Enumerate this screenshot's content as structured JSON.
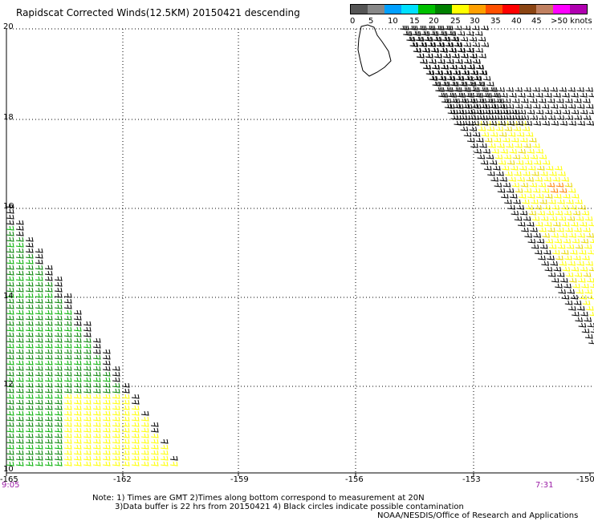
{
  "title": "Rapidscat Corrected Winds(12.5KM) 20150421 descending",
  "legend": {
    "colors": [
      "#555555",
      "#888888",
      "#00a0ff",
      "#00e0ff",
      "#00c000",
      "#008000",
      "#ffff00",
      "#ffa000",
      "#ff5000",
      "#ff0000",
      "#8b4513",
      "#c08060",
      "#ff00ff",
      "#b000b0"
    ],
    "labels": [
      "0",
      "5",
      "10",
      "15",
      "20",
      "25",
      "30",
      "35",
      "40",
      "45",
      ">50 knots"
    ]
  },
  "lat_ticks": [
    "20",
    "18",
    "16",
    "14",
    "12",
    "10"
  ],
  "lon_ticks": [
    "-165",
    "-162",
    "-159",
    "-156",
    "-153",
    "-150"
  ],
  "times": {
    "left": "9:05",
    "right": "7:31"
  },
  "notes": {
    "line1": "Note: 1) Times are GMT 2)Times along bottom correspond to measurement at 20N",
    "line2": "3)Data buffer is 22 hrs from 20150421 4) Black circles indicate possible contamination",
    "line3": "NOAA/NESDIS/Office of Research and Applications"
  },
  "wind_colors": {
    "dark": "#000000",
    "green": "#008000",
    "lightgreen": "#00b000",
    "yellow": "#ffff00",
    "gold": "#e8d800",
    "orange": "#ff8000"
  }
}
